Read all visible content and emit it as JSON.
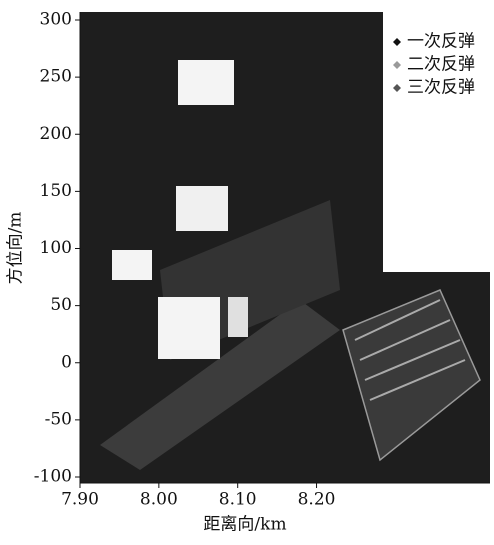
{
  "chart_data": {
    "type": "scatter",
    "xlabel": "距离向/km",
    "ylabel": "方位向/m",
    "xlim": [
      7.9,
      8.42
    ],
    "ylim": [
      -100,
      300
    ],
    "xticks": [
      {
        "value": 7.9,
        "label": "7.90"
      },
      {
        "value": 8.0,
        "label": "8.00"
      },
      {
        "value": 8.1,
        "label": "8.10"
      },
      {
        "value": 8.2,
        "label": "8.20"
      }
    ],
    "yticks": [
      300,
      250,
      200,
      150,
      100,
      50,
      0,
      -50,
      -100
    ],
    "legend": "upper right",
    "series": [
      {
        "name": "一次反弹",
        "color": "#111111"
      },
      {
        "name": "二次反弹",
        "color": "#9a9a9a"
      },
      {
        "name": "三次反弹",
        "color": "#555555"
      }
    ]
  }
}
